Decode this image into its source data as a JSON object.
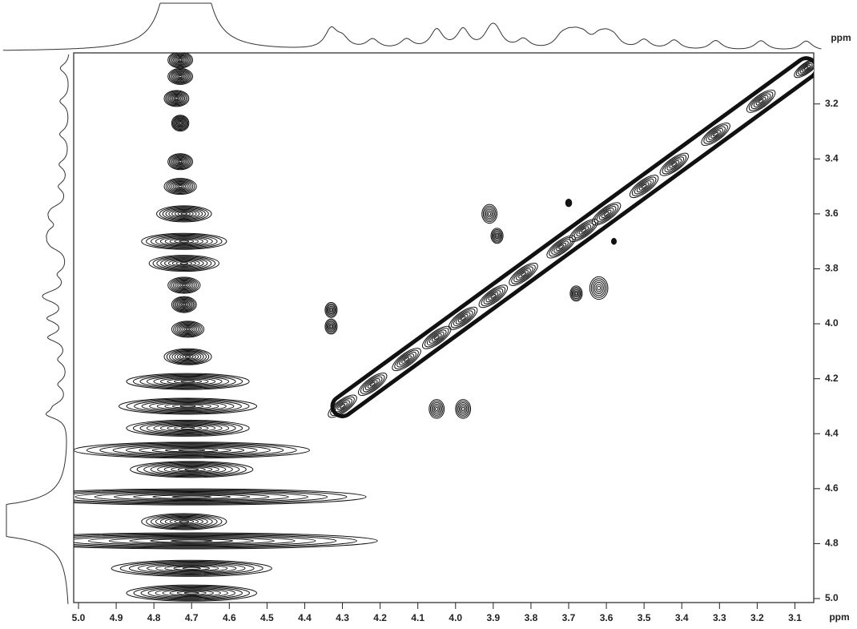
{
  "chart_data": {
    "type": "nmr2d",
    "x_label": "ppm",
    "y_label": "ppm",
    "xlim": [
      5.0,
      3.05
    ],
    "ylim": [
      3.02,
      5.0
    ],
    "xticks": [
      {
        "value": 5.0,
        "label": "5.0"
      },
      4.9,
      4.8,
      4.7,
      4.6,
      4.5,
      4.4,
      4.3,
      4.2,
      4.1,
      {
        "value": 4.0,
        "label": "4.0"
      },
      3.9,
      3.8,
      3.7,
      3.6,
      3.5,
      3.4,
      3.3,
      3.2,
      3.1
    ],
    "yticks": [
      3.2,
      3.4,
      3.6,
      3.8,
      {
        "value": 4.0,
        "label": "4.0"
      },
      4.2,
      4.4,
      4.6,
      4.8,
      {
        "value": 5.0,
        "label": "5.0"
      }
    ],
    "color": "#111111",
    "series": [
      {
        "name": "diagonal",
        "x": [
          4.3,
          4.22,
          4.13,
          4.05,
          3.98,
          3.9,
          3.82,
          3.72,
          3.66,
          3.6,
          3.5,
          3.42,
          3.31,
          3.19,
          3.07
        ],
        "y": [
          4.3,
          4.22,
          4.13,
          4.05,
          3.98,
          3.9,
          3.82,
          3.72,
          3.66,
          3.6,
          3.5,
          3.42,
          3.31,
          3.19,
          3.07
        ],
        "size": [
          0.03,
          0.03,
          0.03,
          0.03,
          0.03,
          0.03,
          0.03,
          0.03,
          0.03,
          0.03,
          0.03,
          0.03,
          0.03,
          0.03,
          0.025
        ]
      },
      {
        "name": "cross",
        "x": [
          3.91,
          3.89,
          3.62,
          3.68,
          4.33,
          4.33,
          4.05,
          3.98,
          3.7,
          3.58
        ],
        "y": [
          3.6,
          3.68,
          3.87,
          3.89,
          3.95,
          4.01,
          4.31,
          4.31,
          3.56,
          3.7
        ],
        "size": [
          0.025,
          0.02,
          0.03,
          0.02,
          0.02,
          0.02,
          0.025,
          0.025,
          0.01,
          0.008
        ]
      },
      {
        "name": "water",
        "x": [
          4.73,
          4.73,
          4.74,
          4.73,
          4.73,
          4.73,
          4.72,
          4.72,
          4.72,
          4.72,
          4.72,
          4.71,
          4.71,
          4.71,
          4.71,
          4.71,
          4.7,
          4.7,
          4.7,
          4.72,
          4.7,
          4.7,
          4.7
        ],
        "y": [
          3.04,
          3.1,
          3.18,
          3.27,
          3.41,
          3.5,
          3.6,
          3.7,
          3.78,
          3.86,
          3.93,
          4.02,
          4.12,
          4.21,
          4.3,
          4.38,
          4.46,
          4.53,
          4.63,
          4.72,
          4.79,
          4.89,
          4.98
        ],
        "size": [
          0.02,
          0.02,
          0.02,
          0.01,
          0.02,
          0.03,
          0.06,
          0.1,
          0.08,
          0.03,
          0.02,
          0.03,
          0.05,
          0.15,
          0.17,
          0.15,
          0.3,
          0.15,
          0.45,
          0.1,
          0.48,
          0.2,
          0.16
        ]
      }
    ]
  }
}
